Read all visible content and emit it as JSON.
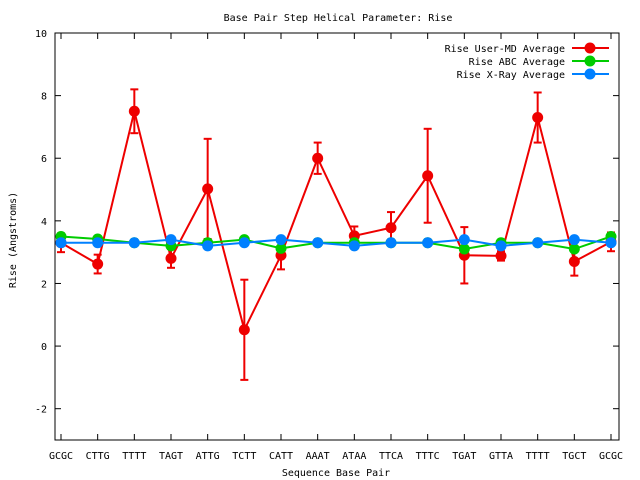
{
  "chart_data": {
    "type": "line",
    "title": "Base Pair Step Helical Parameter: Rise",
    "xlabel": "Sequence Base Pair",
    "ylabel": "Rise (Angstroms)",
    "ylim": [
      -3,
      10
    ],
    "yticks": [
      -2,
      0,
      2,
      4,
      6,
      8,
      10
    ],
    "grid": false,
    "legend_position": "top-right",
    "categories": [
      "GCGC",
      "CTTG",
      "TTTT",
      "TAGT",
      "ATTG",
      "TCTT",
      "CATT",
      "AAAT",
      "ATAA",
      "TTCA",
      "TTTC",
      "TGAT",
      "GTTA",
      "TTTT",
      "TGCT",
      "GCGC"
    ],
    "series": [
      {
        "name": "Rise User-MD Average",
        "color": "#ee0000",
        "values": [
          3.3,
          2.62,
          7.5,
          2.8,
          5.02,
          0.52,
          2.9,
          6.0,
          3.52,
          3.78,
          5.44,
          2.9,
          2.88,
          7.3,
          2.7,
          3.33
        ],
        "error": [
          0.3,
          0.3,
          0.7,
          0.3,
          1.6,
          1.6,
          0.45,
          0.5,
          0.3,
          0.5,
          1.5,
          0.9,
          0.15,
          0.8,
          0.45,
          0.3
        ]
      },
      {
        "name": "Rise ABC Average",
        "color": "#00cc00",
        "values": [
          3.5,
          3.42,
          3.3,
          3.2,
          3.3,
          3.4,
          3.12,
          3.3,
          3.3,
          3.3,
          3.3,
          3.1,
          3.3,
          3.3,
          3.1,
          3.5
        ]
      },
      {
        "name": "Rise X-Ray Average",
        "color": "#0080ff",
        "values": [
          3.3,
          3.3,
          3.3,
          3.4,
          3.2,
          3.3,
          3.4,
          3.3,
          3.2,
          3.3,
          3.3,
          3.4,
          3.2,
          3.3,
          3.4,
          3.3
        ]
      }
    ]
  }
}
